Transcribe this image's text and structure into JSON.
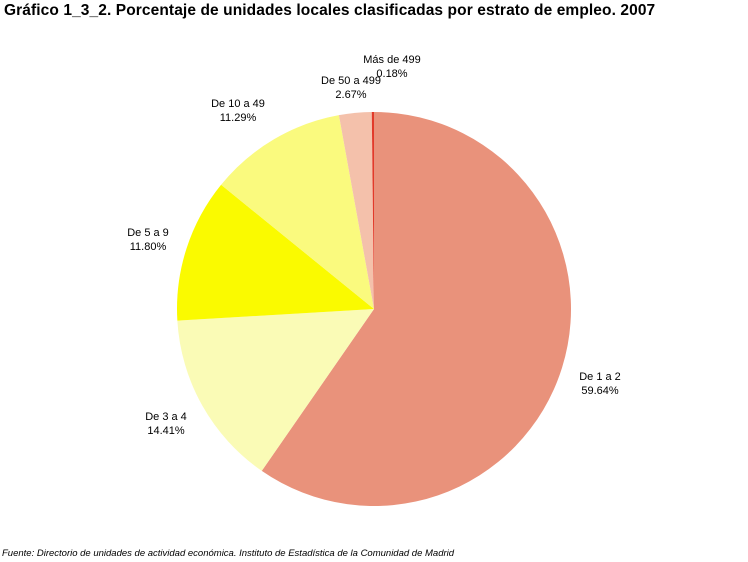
{
  "title": "Gráfico 1_3_2. Porcentaje de unidades locales clasificadas por estrato de empleo. 2007",
  "source": "Fuente: Directorio de unidades de actividad económica. Instituto de Estadística de la Comunidad de Madrid",
  "chart_data": {
    "type": "pie",
    "title": "Gráfico 1_3_2. Porcentaje de unidades locales clasificadas por estrato de empleo. 2007",
    "legend": "none",
    "slices": [
      {
        "label": "De 1 a 2",
        "value": 59.64,
        "value_label": "59.64%",
        "color": "#E9927B"
      },
      {
        "label": "De 3 a 4",
        "value": 14.41,
        "value_label": "14.41%",
        "color": "#FAFBB6"
      },
      {
        "label": "De 5 a 9",
        "value": 11.8,
        "value_label": "11.80%",
        "color": "#FAFA00"
      },
      {
        "label": "De 10 a 49",
        "value": 11.29,
        "value_label": "11.29%",
        "color": "#FAFA7E"
      },
      {
        "label": "De 50 a 499",
        "value": 2.67,
        "value_label": "2.67%",
        "color": "#F4C1AB"
      },
      {
        "label": "Más de 499",
        "value": 0.18,
        "value_label": "0.18%",
        "color": "#E23A2A"
      }
    ]
  }
}
